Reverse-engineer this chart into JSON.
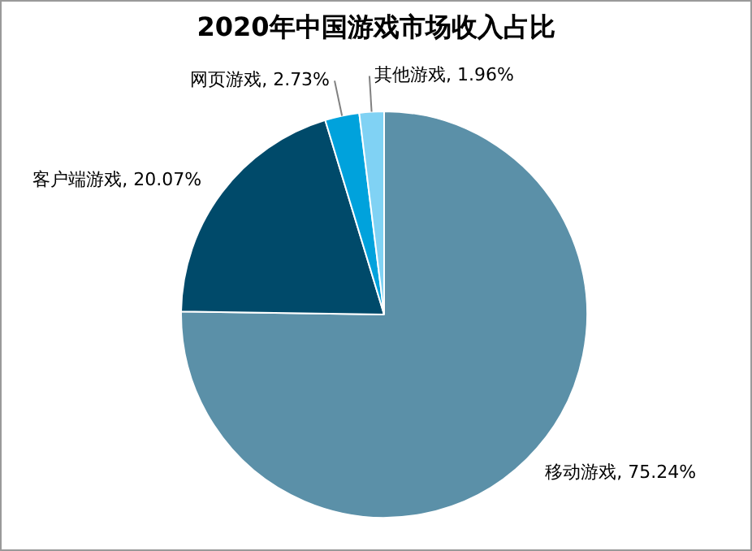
{
  "chart_data": {
    "type": "pie",
    "title": "2020年中国游戏市场收入占比",
    "categories": [
      "移动游戏",
      "客户端游戏",
      "网页游戏",
      "其他游戏"
    ],
    "values": [
      75.24,
      20.07,
      2.73,
      1.96
    ],
    "colors": [
      "#5b90a8",
      "#004a6a",
      "#00a2dc",
      "#80d2f4"
    ],
    "value_labels": [
      "75.24%",
      "20.07%",
      "2.73%",
      "1.96%"
    ],
    "legend": false
  }
}
